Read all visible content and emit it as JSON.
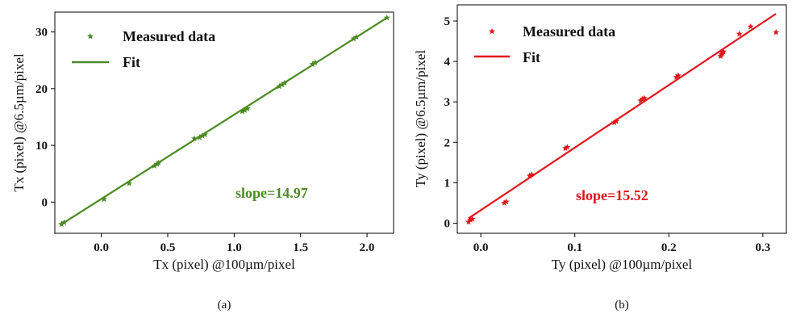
{
  "chart_data": [
    {
      "type": "scatter",
      "panel": "(a)",
      "xlabel": "Tx (pixel) @100µm/pixel",
      "ylabel": "Tx (pixel) @6.5µm/pixel",
      "xlim": [
        -0.35,
        2.2
      ],
      "ylim": [
        -5.5,
        33.5
      ],
      "xticks": [
        0.0,
        0.5,
        1.0,
        1.5,
        2.0
      ],
      "xtick_labels": [
        "0.0",
        "0.5",
        "1.0",
        "1.5",
        "2.0"
      ],
      "yticks": [
        0,
        10,
        20,
        30
      ],
      "ytick_labels": [
        "0",
        "10",
        "20",
        "30"
      ],
      "color": "#4a8a22",
      "grid": false,
      "legend_position": "top-left",
      "series": [
        {
          "name": "Measured data",
          "kind": "markers",
          "marker": "star",
          "x": [
            -0.3,
            -0.28,
            0.02,
            0.21,
            0.4,
            0.42,
            0.43,
            0.7,
            0.74,
            0.76,
            0.78,
            1.06,
            1.08,
            1.1,
            1.34,
            1.36,
            1.38,
            1.59,
            1.61,
            1.9,
            1.92,
            2.15
          ],
          "y": [
            -3.9,
            -3.6,
            0.5,
            3.3,
            6.4,
            6.7,
            6.9,
            11.2,
            11.4,
            11.7,
            11.9,
            16.0,
            16.2,
            16.5,
            20.4,
            20.7,
            21.0,
            24.3,
            24.6,
            28.8,
            29.1,
            32.5
          ]
        },
        {
          "name": "Fit",
          "kind": "line",
          "x": [
            -0.3,
            2.15
          ],
          "y": [
            -3.9,
            32.5
          ]
        }
      ],
      "annotation": "slope=14.97",
      "caption": "(a)"
    },
    {
      "type": "scatter",
      "panel": "(b)",
      "xlabel": "Ty (pixel) @100µm/pixel",
      "ylabel": "Ty (pixel) @6.5µm/pixel",
      "xlim": [
        -0.025,
        0.325
      ],
      "ylim": [
        -0.25,
        5.4
      ],
      "xticks": [
        0.0,
        0.1,
        0.2,
        0.3
      ],
      "xtick_labels": [
        "0.0",
        "0.1",
        "0.2",
        "0.3"
      ],
      "yticks": [
        0,
        1,
        2,
        3,
        4,
        5
      ],
      "ytick_labels": [
        "0",
        "1",
        "2",
        "3",
        "4",
        "5"
      ],
      "color": "#e0151b",
      "grid": false,
      "legend_position": "top-left",
      "series": [
        {
          "name": "Measured data",
          "kind": "markers",
          "marker": "star",
          "x": [
            -0.013,
            -0.011,
            -0.009,
            0.025,
            0.027,
            0.052,
            0.054,
            0.09,
            0.092,
            0.142,
            0.144,
            0.17,
            0.172,
            0.174,
            0.208,
            0.21,
            0.255,
            0.256,
            0.257,
            0.258,
            0.275,
            0.287,
            0.314
          ],
          "y": [
            0.03,
            0.08,
            0.1,
            0.5,
            0.53,
            1.17,
            1.2,
            1.85,
            1.88,
            2.49,
            2.52,
            3.03,
            3.07,
            3.09,
            3.61,
            3.65,
            4.13,
            4.17,
            4.21,
            4.24,
            4.68,
            4.86,
            4.72
          ]
        },
        {
          "name": "Fit",
          "kind": "line",
          "x": [
            -0.013,
            0.314
          ],
          "y": [
            0.12,
            5.18
          ]
        }
      ],
      "annotation": "slope=15.52",
      "caption": "(b)"
    }
  ]
}
